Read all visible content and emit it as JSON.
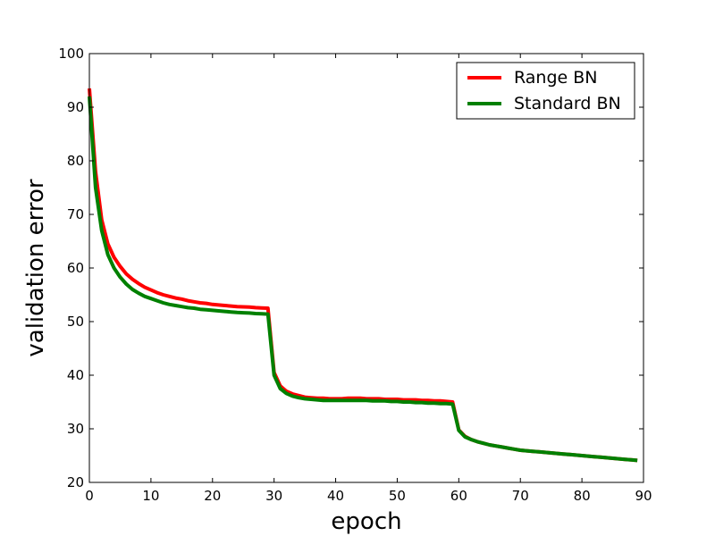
{
  "chart_data": {
    "type": "line",
    "title": "",
    "xlabel": "epoch",
    "ylabel": "validation error",
    "xlim": [
      0,
      90
    ],
    "ylim": [
      20,
      100
    ],
    "xticks": [
      0,
      10,
      20,
      30,
      40,
      50,
      60,
      70,
      80,
      90
    ],
    "yticks": [
      20,
      30,
      40,
      50,
      60,
      70,
      80,
      90,
      100
    ],
    "grid": false,
    "legend_position": "top-right",
    "x": [
      0,
      1,
      2,
      3,
      4,
      5,
      6,
      7,
      8,
      9,
      10,
      11,
      12,
      13,
      14,
      15,
      16,
      17,
      18,
      19,
      20,
      21,
      22,
      23,
      24,
      25,
      26,
      27,
      28,
      29,
      30,
      31,
      32,
      33,
      34,
      35,
      36,
      37,
      38,
      39,
      40,
      41,
      42,
      43,
      44,
      45,
      46,
      47,
      48,
      49,
      50,
      51,
      52,
      53,
      54,
      55,
      56,
      57,
      58,
      59,
      60,
      61,
      62,
      63,
      64,
      65,
      66,
      67,
      68,
      69,
      70,
      71,
      72,
      73,
      74,
      75,
      76,
      77,
      78,
      79,
      80,
      81,
      82,
      83,
      84,
      85,
      86,
      87,
      88,
      89
    ],
    "series": [
      {
        "name": "Range BN",
        "color": "#ff0000",
        "values": [
          93.5,
          78.0,
          69.0,
          64.5,
          62.0,
          60.3,
          58.9,
          57.9,
          57.1,
          56.4,
          55.9,
          55.4,
          55.0,
          54.7,
          54.4,
          54.2,
          53.9,
          53.7,
          53.5,
          53.4,
          53.2,
          53.1,
          53.0,
          52.9,
          52.8,
          52.75,
          52.7,
          52.6,
          52.55,
          52.5,
          40.5,
          38.0,
          37.0,
          36.5,
          36.2,
          35.9,
          35.8,
          35.7,
          35.7,
          35.6,
          35.6,
          35.6,
          35.7,
          35.7,
          35.7,
          35.6,
          35.6,
          35.6,
          35.5,
          35.5,
          35.5,
          35.4,
          35.4,
          35.4,
          35.3,
          35.3,
          35.2,
          35.2,
          35.1,
          35.0,
          29.8,
          28.6,
          28.0,
          27.6,
          27.3,
          27.0,
          26.8,
          26.6,
          26.4,
          26.2,
          26.0,
          25.9,
          25.8,
          25.7,
          25.6,
          25.5,
          25.4,
          25.3,
          25.2,
          25.1,
          25.0,
          24.9,
          24.8,
          24.7,
          24.6,
          24.5,
          24.4,
          24.3,
          24.2,
          24.1
        ]
      },
      {
        "name": "Standard BN",
        "color": "#008000",
        "values": [
          92.0,
          75.0,
          67.0,
          62.5,
          60.0,
          58.3,
          57.0,
          56.0,
          55.3,
          54.7,
          54.3,
          53.9,
          53.5,
          53.2,
          53.0,
          52.8,
          52.6,
          52.5,
          52.3,
          52.2,
          52.1,
          52.0,
          51.9,
          51.8,
          51.7,
          51.65,
          51.6,
          51.5,
          51.45,
          51.4,
          40.0,
          37.5,
          36.6,
          36.1,
          35.8,
          35.6,
          35.5,
          35.4,
          35.3,
          35.3,
          35.3,
          35.3,
          35.3,
          35.3,
          35.3,
          35.3,
          35.2,
          35.2,
          35.2,
          35.1,
          35.1,
          35.0,
          35.0,
          34.9,
          34.9,
          34.8,
          34.8,
          34.7,
          34.7,
          34.6,
          29.7,
          28.5,
          28.0,
          27.6,
          27.3,
          27.0,
          26.8,
          26.6,
          26.4,
          26.2,
          26.0,
          25.9,
          25.8,
          25.7,
          25.6,
          25.5,
          25.4,
          25.3,
          25.2,
          25.1,
          25.0,
          24.9,
          24.8,
          24.7,
          24.6,
          24.5,
          24.4,
          24.3,
          24.2,
          24.1
        ]
      }
    ]
  }
}
